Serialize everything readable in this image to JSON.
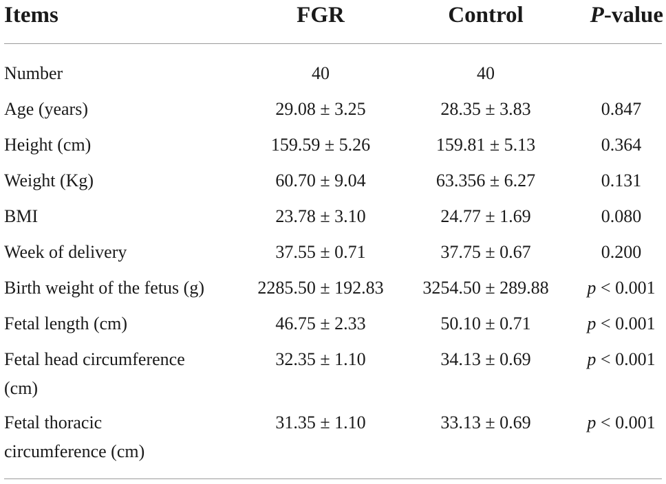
{
  "header": {
    "items": "Items",
    "fgr": "FGR",
    "control": "Control",
    "pvalue_italic": "P",
    "pvalue_rest": "-value"
  },
  "rows": [
    {
      "item_lines": [
        "Number"
      ],
      "fgr": "40",
      "control": "40",
      "pvalue": ""
    },
    {
      "item_lines": [
        "Age (years)"
      ],
      "fgr": "29.08 ± 3.25",
      "control": "28.35 ± 3.83",
      "pvalue": "0.847"
    },
    {
      "item_lines": [
        "Height (cm)"
      ],
      "fgr": "159.59 ± 5.26",
      "control": "159.81 ± 5.13",
      "pvalue": "0.364"
    },
    {
      "item_lines": [
        "Weight (Kg)"
      ],
      "fgr": "60.70 ± 9.04",
      "control": "63.356 ± 6.27",
      "pvalue": "0.131"
    },
    {
      "item_lines": [
        "BMI"
      ],
      "fgr": "23.78 ± 3.10",
      "control": "24.77 ± 1.69",
      "pvalue": "0.080"
    },
    {
      "item_lines": [
        "Week of delivery"
      ],
      "fgr": "37.55 ± 0.71",
      "control": "37.75 ± 0.67",
      "pvalue": "0.200"
    },
    {
      "item_lines": [
        "Birth weight of the fetus (g)"
      ],
      "fgr": "2285.50 ± 192.83",
      "control": "3254.50 ± 289.88",
      "pvalue_p": "p",
      "pvalue": " < 0.001"
    },
    {
      "item_lines": [
        "Fetal length (cm)"
      ],
      "fgr": "46.75 ± 2.33",
      "control": "50.10 ± 0.71",
      "pvalue_p": "p",
      "pvalue": " < 0.001"
    },
    {
      "item_lines": [
        "Fetal head circumference",
        "(cm)"
      ],
      "fgr": "32.35 ± 1.10",
      "control": "34.13 ± 0.69",
      "pvalue_p": "p",
      "pvalue": " < 0.001"
    },
    {
      "item_lines": [
        "Fetal thoracic",
        "circumference (cm)"
      ],
      "fgr": "31.35 ± 1.10",
      "control": "33.13 ± 0.69",
      "pvalue_p": "p",
      "pvalue": " < 0.001"
    }
  ]
}
